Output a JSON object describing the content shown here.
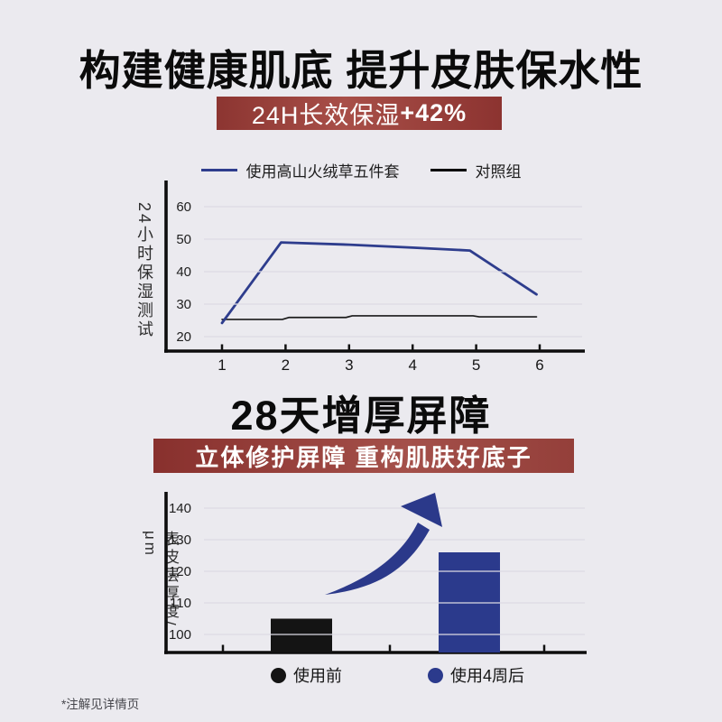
{
  "page": {
    "background_color": "#ebeaef",
    "footer_note": "*注解见详情页"
  },
  "section_moisture": {
    "title": "构建健康肌底 提升皮肤保水性",
    "banner_text": "24H长效保湿",
    "banner_highlight": "+42%",
    "banner_color": "#943b36"
  },
  "section_barrier": {
    "title": "28天增厚屏障",
    "banner_text": "立体修护屏障 重构肌肤好底子",
    "banner_color": "#943b36"
  },
  "chart_data": [
    {
      "type": "line",
      "ylabel": "24小时保湿测试",
      "x_ticks": [
        1,
        2,
        3,
        4,
        5,
        6
      ],
      "y_ticks": [
        20,
        30,
        40,
        50,
        60
      ],
      "ylim": [
        15.5,
        62
      ],
      "grid": true,
      "legend_position": "top",
      "series": [
        {
          "name": "使用高山火绒草五件套",
          "color": "#2e3d8d",
          "points": [
            [
              1,
              24.2
            ],
            [
              1.93,
              49
            ],
            [
              3,
              48.3
            ],
            [
              4,
              47.4
            ],
            [
              4.9,
              46.5
            ],
            [
              5.95,
              33
            ]
          ]
        },
        {
          "name": "对照组",
          "color": "#1b1b1b",
          "points": [
            [
              1,
              25.3
            ],
            [
              1.95,
              25.3
            ],
            [
              2.05,
              25.9
            ],
            [
              2.95,
              25.9
            ],
            [
              3.05,
              26.4
            ],
            [
              4.95,
              26.4
            ],
            [
              5.05,
              26.1
            ],
            [
              5.95,
              26.1
            ]
          ]
        }
      ]
    },
    {
      "type": "bar",
      "ylabel": "表皮层厚度/μm",
      "y_ticks": [
        100,
        110,
        120,
        130,
        140
      ],
      "ylim": [
        94.3,
        146
      ],
      "grid": true,
      "categories": [
        "使用前",
        "使用4周后"
      ],
      "values": [
        105,
        126
      ],
      "bar_colors": [
        "#141414",
        "#2b3a8c"
      ],
      "annotation": "growth-arrow",
      "arrow_color": "#2b398a"
    }
  ]
}
